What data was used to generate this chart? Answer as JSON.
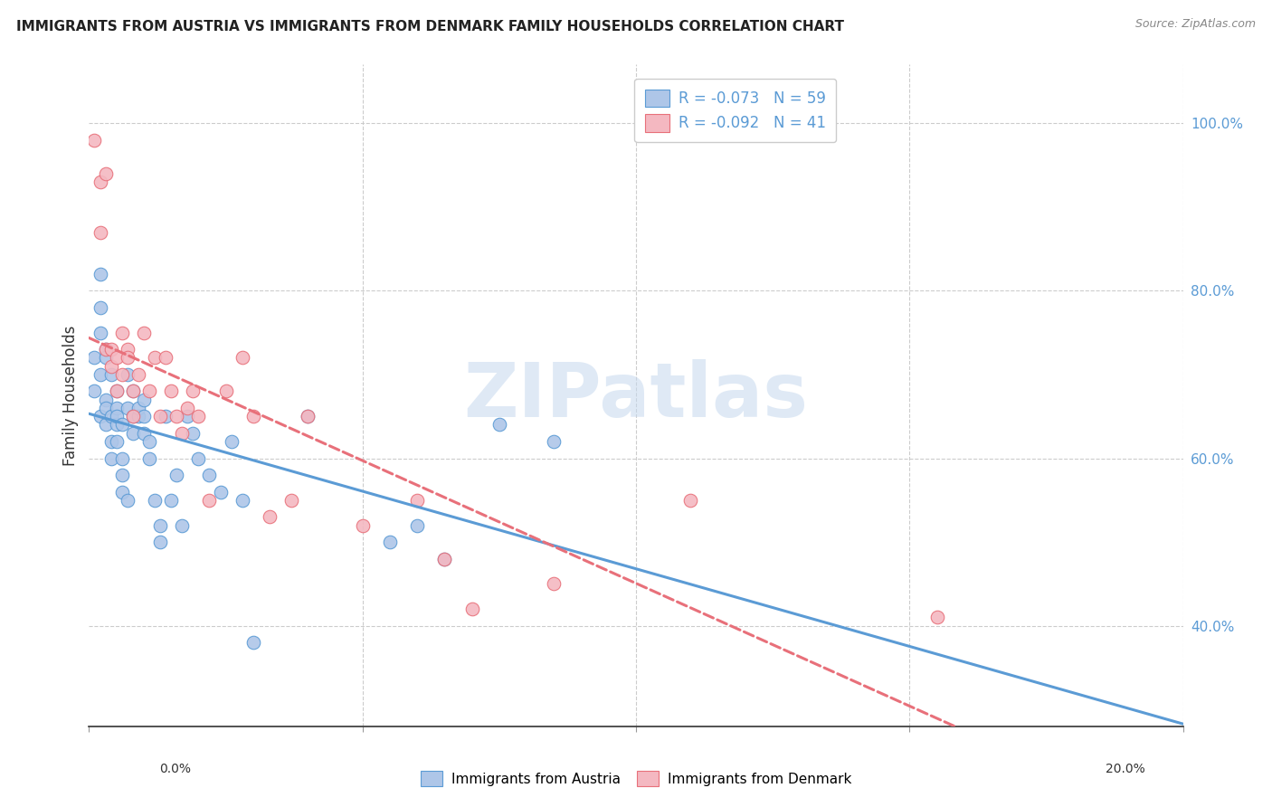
{
  "title": "IMMIGRANTS FROM AUSTRIA VS IMMIGRANTS FROM DENMARK FAMILY HOUSEHOLDS CORRELATION CHART",
  "source": "Source: ZipAtlas.com",
  "ylabel": "Family Households",
  "ytick_labels": [
    "40.0%",
    "60.0%",
    "80.0%",
    "100.0%"
  ],
  "ytick_values": [
    0.4,
    0.6,
    0.8,
    1.0
  ],
  "xlim": [
    0.0,
    0.2
  ],
  "ylim": [
    0.28,
    1.07
  ],
  "austria_color": "#aec6e8",
  "denmark_color": "#f4b8c1",
  "austria_line_color": "#5b9bd5",
  "denmark_line_color": "#e8707a",
  "legend_r_austria": "R = -0.073",
  "legend_n_austria": "N = 59",
  "legend_r_denmark": "R = -0.092",
  "legend_n_denmark": "N = 41",
  "watermark": "ZIPatlas",
  "austria_x": [
    0.001,
    0.001,
    0.002,
    0.002,
    0.002,
    0.002,
    0.002,
    0.003,
    0.003,
    0.003,
    0.003,
    0.003,
    0.004,
    0.004,
    0.004,
    0.004,
    0.005,
    0.005,
    0.005,
    0.005,
    0.005,
    0.006,
    0.006,
    0.006,
    0.006,
    0.007,
    0.007,
    0.007,
    0.008,
    0.008,
    0.008,
    0.009,
    0.009,
    0.01,
    0.01,
    0.01,
    0.011,
    0.011,
    0.012,
    0.013,
    0.013,
    0.014,
    0.015,
    0.016,
    0.017,
    0.018,
    0.019,
    0.02,
    0.022,
    0.024,
    0.026,
    0.028,
    0.03,
    0.04,
    0.055,
    0.06,
    0.065,
    0.075,
    0.085
  ],
  "austria_y": [
    0.68,
    0.72,
    0.75,
    0.7,
    0.65,
    0.78,
    0.82,
    0.73,
    0.67,
    0.66,
    0.72,
    0.64,
    0.7,
    0.6,
    0.65,
    0.62,
    0.68,
    0.64,
    0.66,
    0.65,
    0.62,
    0.56,
    0.6,
    0.64,
    0.58,
    0.7,
    0.66,
    0.55,
    0.65,
    0.68,
    0.63,
    0.65,
    0.66,
    0.67,
    0.65,
    0.63,
    0.6,
    0.62,
    0.55,
    0.52,
    0.5,
    0.65,
    0.55,
    0.58,
    0.52,
    0.65,
    0.63,
    0.6,
    0.58,
    0.56,
    0.62,
    0.55,
    0.38,
    0.65,
    0.5,
    0.52,
    0.48,
    0.64,
    0.62
  ],
  "denmark_x": [
    0.001,
    0.002,
    0.002,
    0.003,
    0.003,
    0.004,
    0.004,
    0.005,
    0.005,
    0.006,
    0.006,
    0.007,
    0.007,
    0.008,
    0.008,
    0.009,
    0.01,
    0.011,
    0.012,
    0.013,
    0.014,
    0.015,
    0.016,
    0.017,
    0.018,
    0.019,
    0.02,
    0.022,
    0.025,
    0.028,
    0.03,
    0.033,
    0.037,
    0.04,
    0.05,
    0.06,
    0.065,
    0.07,
    0.085,
    0.11,
    0.155
  ],
  "denmark_y": [
    0.98,
    0.93,
    0.87,
    0.94,
    0.73,
    0.71,
    0.73,
    0.68,
    0.72,
    0.75,
    0.7,
    0.73,
    0.72,
    0.68,
    0.65,
    0.7,
    0.75,
    0.68,
    0.72,
    0.65,
    0.72,
    0.68,
    0.65,
    0.63,
    0.66,
    0.68,
    0.65,
    0.55,
    0.68,
    0.72,
    0.65,
    0.53,
    0.55,
    0.65,
    0.52,
    0.55,
    0.48,
    0.42,
    0.45,
    0.55,
    0.41
  ]
}
